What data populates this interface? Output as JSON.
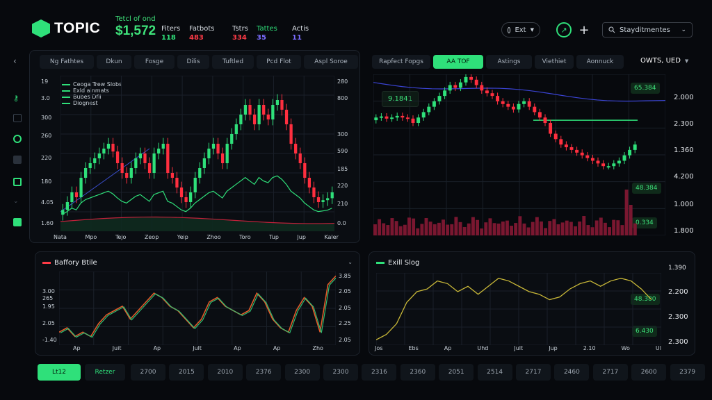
{
  "header": {
    "logo_text": "TOPIC",
    "main_stat": {
      "label": "Tetcl of ond",
      "value": "$1,572"
    },
    "stats": [
      {
        "label": "Fiters",
        "value": "118",
        "color": "#2fe07a"
      },
      {
        "label": "Fatbots",
        "value": "483",
        "color": "#ff3b47"
      },
      {
        "label": "Tstrs",
        "value": "334",
        "color": "#ff3b47"
      },
      {
        "label": "Tattes",
        "value": "35",
        "color": "#7b6dff"
      },
      {
        "label": "Actis",
        "value": "11",
        "color": "#7b6dff"
      }
    ],
    "dropdown_label": "Ext",
    "search_placeholder": "Stayditmentes",
    "icons": [
      "chevron-down-icon",
      "lightning-icon",
      "plus-icon",
      "search-icon"
    ]
  },
  "sidebar": {
    "icons": [
      "chevron-left-icon",
      "key-icon",
      "home-icon",
      "target-icon",
      "box-icon",
      "doc-icon",
      "chevron-down-icon",
      "calendar-icon"
    ]
  },
  "panel_tl": {
    "tabs": [
      "Ng Fathtes",
      "Dkun",
      "Fosge",
      "Dilis",
      "Tuftled",
      "Pcd Flot",
      "Aspl Soroe"
    ],
    "legend": [
      "Ceoga Trew Slobs",
      "Exld ainmats",
      "Bubes Dfli",
      "Diognest"
    ],
    "y_left": [
      "19",
      "3.0",
      "300",
      "260",
      "220",
      "180",
      "4.05",
      "1.60"
    ],
    "y_right": [
      "280",
      "800",
      "300",
      "590",
      "185",
      "220",
      "210",
      "0.0"
    ],
    "x_labels": [
      "Nata",
      "Mpo",
      "Tejo",
      "Zeop",
      "Yeip",
      "Zhoo",
      "Toro",
      "Tup",
      "Jup",
      "Kaler"
    ]
  },
  "panel_tr": {
    "tabs": [
      "Rapfect Fopgs",
      "AA TOF",
      "Astings",
      "Viethiet",
      "Aonnuck"
    ],
    "active_tab": "AA TOF",
    "dropdown": "OWTS, UED",
    "tag_price": "9.1841",
    "badges": [
      "65.384",
      "48.384",
      "0.334"
    ],
    "y_right": [
      "2.000",
      "2.300",
      "1.360",
      "4.200",
      "1.000",
      "1.800"
    ]
  },
  "panel_bl": {
    "title": "Baffory Btile",
    "y_left": [
      "3.00",
      "265",
      "1.95",
      "2.05",
      "-1.40"
    ],
    "y_right": [
      "3.85",
      "2.05",
      "2.05",
      "2.25",
      "2.05"
    ],
    "x_labels": [
      "Ap",
      "Juit",
      "Ap",
      "Jult",
      "Ap",
      "Ap",
      "Zho"
    ]
  },
  "panel_br": {
    "title": "Exill Slog",
    "badges": [
      "48.380",
      "6.430"
    ],
    "y_right": [
      "1.390",
      "2.200",
      "2.300",
      "2.300"
    ],
    "x_labels": [
      "Jos",
      "Ebs",
      "Ap",
      "Uhd",
      "Jult",
      "Jup",
      "2.10",
      "Wo",
      "Ul"
    ]
  },
  "bottom_bar": {
    "active": "Lt12",
    "second": "Retzer",
    "items": [
      "2700",
      "2015",
      "2010",
      "2376",
      "2300",
      "2300",
      "2316",
      "2360",
      "2051",
      "2514",
      "2717",
      "2460",
      "2717",
      "2600",
      "2379"
    ]
  },
  "chart_data": [
    {
      "type": "candlestick",
      "categories": [
        "Nata",
        "Mpo",
        "Tejo",
        "Zeop",
        "Yeip",
        "Zhoo",
        "Toro",
        "Tup",
        "Jup",
        "Kaler"
      ],
      "series": [
        {
          "name": "Ceoga Trew Slobs",
          "values": [
            1.6,
            2.2,
            2.3,
            2.0,
            2.1,
            2.4,
            2.8,
            2.6,
            1.6,
            1.7
          ]
        }
      ],
      "candles": [
        1.62,
        1.7,
        1.8,
        1.75,
        1.95,
        2.05,
        2.1,
        2.15,
        2.2,
        2.25,
        2.3,
        2.22,
        2.1,
        2.0,
        1.95,
        2.05,
        2.15,
        2.2,
        2.1,
        2.0,
        2.2,
        2.25,
        2.3,
        2.0,
        1.95,
        1.85,
        1.75,
        1.7,
        1.8,
        1.95,
        2.05,
        2.15,
        2.25,
        2.3,
        2.2,
        2.1,
        2.3,
        2.4,
        2.5,
        2.6,
        2.7,
        2.6,
        2.5,
        2.7,
        2.6,
        2.55,
        2.7,
        2.75,
        2.65,
        2.5,
        2.3,
        2.2,
        2.1,
        1.95,
        1.85,
        1.75,
        1.7,
        1.72,
        1.74,
        1.8
      ],
      "grid": true
    },
    {
      "type": "candlestick",
      "candles": [
        2.3,
        2.32,
        2.28,
        2.3,
        2.33,
        2.3,
        2.28,
        2.2,
        2.3,
        2.4,
        2.5,
        2.6,
        2.7,
        2.8,
        2.9,
        2.85,
        2.95,
        3.05,
        3.0,
        2.9,
        2.8,
        2.75,
        2.7,
        2.6,
        2.55,
        2.5,
        2.45,
        2.55,
        2.6,
        2.5,
        2.4,
        2.3,
        2.2,
        2.0,
        1.9,
        1.8,
        1.75,
        1.7,
        1.65,
        1.6,
        1.55,
        1.5,
        1.45,
        1.4,
        1.4,
        1.45,
        1.5,
        1.6,
        1.7,
        1.8
      ],
      "grid": true
    },
    {
      "type": "line",
      "series": [
        {
          "values": [
            2.05,
            2.1,
            2.0,
            2.05,
            2.0,
            2.15,
            2.25,
            2.3,
            2.35,
            2.2,
            2.3,
            2.4,
            2.5,
            2.45,
            2.35,
            2.3,
            2.2,
            2.1,
            2.2,
            2.4,
            2.45,
            2.35,
            2.3,
            2.25,
            2.3,
            2.5,
            2.4,
            2.2,
            2.1,
            2.05,
            2.3,
            2.45,
            2.35,
            2.05,
            2.6,
            2.7
          ]
        }
      ],
      "grid": true
    },
    {
      "type": "line",
      "series": [
        {
          "values": [
            1.1,
            1.2,
            1.4,
            1.8,
            2.0,
            2.05,
            2.2,
            2.15,
            2.0,
            2.1,
            1.95,
            2.1,
            2.25,
            2.2,
            2.1,
            2.0,
            1.95,
            1.85,
            1.9,
            2.05,
            2.15,
            2.2,
            2.1,
            2.2,
            2.25,
            2.2,
            2.05,
            1.85
          ]
        }
      ],
      "grid": true
    }
  ]
}
